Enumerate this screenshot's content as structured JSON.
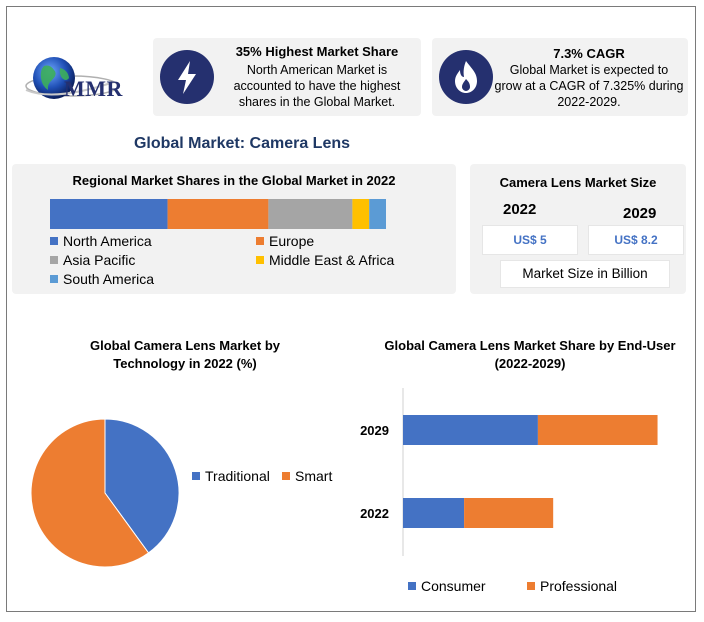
{
  "logo": {
    "text": "MMR"
  },
  "highlight1": {
    "icon": "lightning-icon",
    "title": "35% Highest Market Share",
    "text_lines": [
      "North American Market is",
      "accounted to have the highest",
      "shares in the Global Market."
    ]
  },
  "highlight2": {
    "icon": "flame-icon",
    "title": "7.3% CAGR",
    "text_lines": [
      "Global Market is expected to",
      "grow at a CAGR of 7.325% during",
      "2022-2029."
    ]
  },
  "main_title": "Global Market: Camera Lens",
  "market_size": {
    "title": "Camera Lens Market Size",
    "year_a": "2022",
    "year_b": "2029",
    "value_a": "US$ 5",
    "value_b": "US$ 8.2",
    "unit_label": "Market Size in Billion"
  },
  "colors": {
    "blue": "#4472c4",
    "orange": "#ed7d31",
    "gray": "#a5a5a5",
    "yellow": "#ffc000",
    "lightblue": "#5b9bd5",
    "title_navy": "#1f3864"
  },
  "chart_data": [
    {
      "type": "bar",
      "orientation": "horizontal-stacked",
      "title": "Regional Market Shares in the Global Market in 2022",
      "series": [
        {
          "name": "North America",
          "values": [
            35
          ],
          "color": "#4472c4"
        },
        {
          "name": "Europe",
          "values": [
            30
          ],
          "color": "#ed7d31"
        },
        {
          "name": "Asia Pacific",
          "values": [
            25
          ],
          "color": "#a5a5a5"
        },
        {
          "name": "Middle East & Africa",
          "values": [
            5
          ],
          "color": "#ffc000"
        },
        {
          "name": "South America",
          "values": [
            5
          ],
          "color": "#5b9bd5"
        }
      ],
      "legend": "bottom"
    },
    {
      "type": "pie",
      "title": "Global Camera Lens Market by Technology in 2022 (%)",
      "title_lines": [
        "Global Camera Lens Market by",
        "Technology in 2022 (%)"
      ],
      "slices": [
        {
          "name": "Traditional",
          "value": 40,
          "color": "#4472c4"
        },
        {
          "name": "Smart",
          "value": 60,
          "color": "#ed7d31"
        }
      ],
      "legend": "right"
    },
    {
      "type": "bar",
      "orientation": "horizontal-stacked",
      "title": "Global Camera Lens Market Share by End-User (2022-2029)",
      "title_lines": [
        "Global Camera Lens Market Share by End-User",
        "(2022-2029)"
      ],
      "categories": [
        "2029",
        "2022"
      ],
      "series": [
        {
          "name": "Consumer",
          "values": [
            5.3,
            2.4
          ],
          "color": "#4472c4"
        },
        {
          "name": "Professional",
          "values": [
            4.7,
            3.5
          ],
          "color": "#ed7d31"
        }
      ],
      "xlim": [
        0,
        11
      ],
      "legend": "bottom"
    }
  ]
}
